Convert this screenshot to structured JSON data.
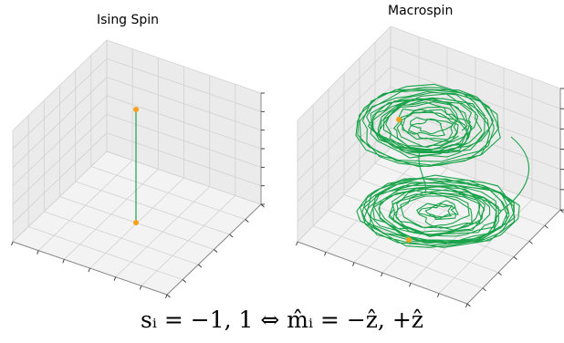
{
  "panels": [
    {
      "title": "Ising Spin"
    },
    {
      "title": "Macrospin"
    }
  ],
  "equation": "sᵢ = −1, 1 ⇔ m̂ᵢ = −ẑ, +ẑ",
  "colors": {
    "trajectory": "#1aa34a",
    "endpoint": "#f5a11a",
    "pane_side": "#ebebeb",
    "pane_floor": "#f3f3f3",
    "grid": "#d2d2d2",
    "axis": "#888888"
  }
}
